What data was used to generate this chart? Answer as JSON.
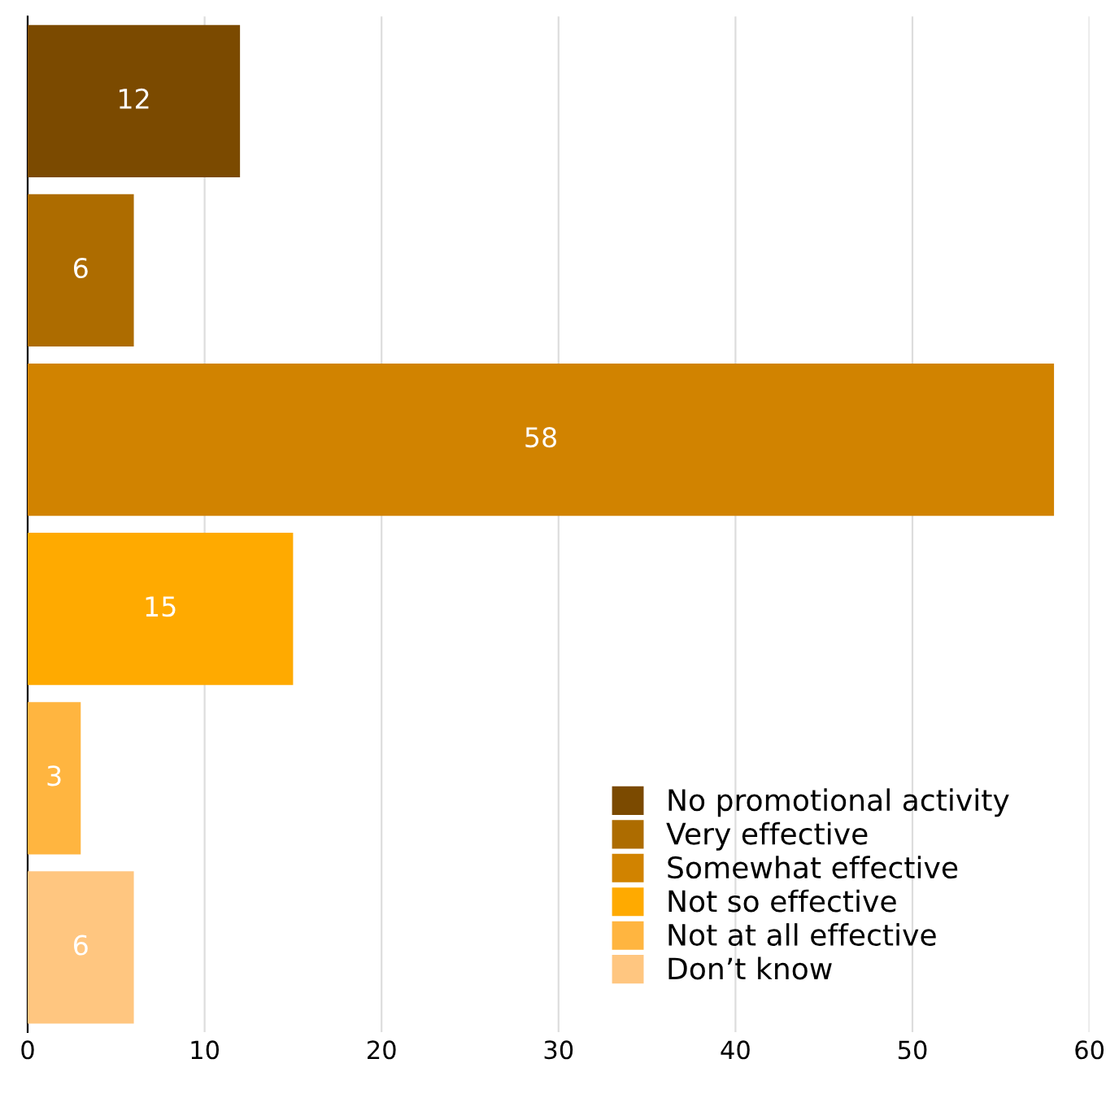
{
  "chart_data": {
    "type": "bar",
    "orientation": "horizontal",
    "categories": [
      null,
      null,
      null,
      null,
      null,
      null
    ],
    "series": [
      {
        "name": "No promotional activity",
        "color": "#7b4a00",
        "values": [
          12,
          null,
          null,
          null,
          null,
          null
        ]
      },
      {
        "name": "Very effective",
        "color": "#ad6c00",
        "values": [
          null,
          6,
          null,
          null,
          null,
          null
        ]
      },
      {
        "name": "Somewhat effective",
        "color": "#d18300",
        "values": [
          null,
          null,
          58,
          null,
          null,
          null
        ]
      },
      {
        "name": "Not so effective",
        "color": "#ffaa00",
        "values": [
          null,
          null,
          null,
          15,
          null,
          null
        ]
      },
      {
        "name": "Not at all effective",
        "color": "#ffb540",
        "values": [
          null,
          null,
          null,
          null,
          3,
          null
        ]
      },
      {
        "name": "Don’t know",
        "color": "#ffc680",
        "values": [
          null,
          null,
          null,
          null,
          null,
          6
        ]
      }
    ],
    "xlim": [
      0,
      60
    ],
    "xticks": [
      0,
      10,
      20,
      30,
      40,
      50,
      60
    ],
    "grid": "x",
    "legend": "bottom right",
    "data_labels": true
  }
}
